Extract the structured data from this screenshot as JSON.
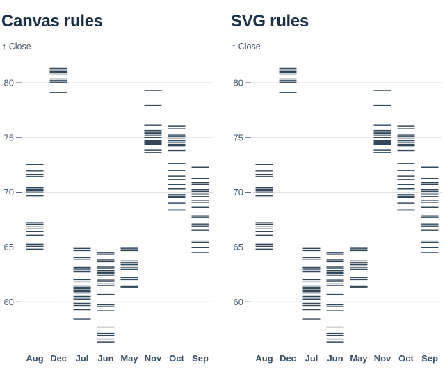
{
  "figures": [
    {
      "title": "Canvas rules",
      "y_axis_label": "↑ Close",
      "renderer": "canvas"
    },
    {
      "title": "SVG rules",
      "y_axis_label": "↑ Close",
      "renderer": "svg"
    }
  ],
  "chart_data": {
    "type": "tick",
    "title": "Canvas rules vs SVG rules",
    "xlabel": "",
    "ylabel": "Close",
    "categories": [
      "Aug",
      "Dec",
      "Jul",
      "Jun",
      "May",
      "Nov",
      "Oct",
      "Sep"
    ],
    "yticks": [
      60,
      65,
      70,
      75,
      80
    ],
    "ylim": [
      56,
      82
    ],
    "grid": true,
    "legend": "none",
    "series": [
      {
        "name": "Aug",
        "values": [
          72.53,
          72.0,
          71.87,
          71.6,
          71.45,
          70.44,
          70.28,
          70.12,
          69.96,
          69.68,
          67.26,
          67.1,
          66.85,
          66.66,
          66.41,
          66.09,
          65.26,
          65.07,
          64.82
        ]
      },
      {
        "name": "Dec",
        "values": [
          81.3,
          81.17,
          81.05,
          80.93,
          80.79,
          80.35,
          80.2,
          80.05,
          79.1
        ]
      },
      {
        "name": "Jul",
        "values": [
          64.88,
          64.69,
          64.05,
          63.9,
          63.16,
          63.0,
          62.78,
          62.02,
          61.83,
          61.45,
          61.32,
          61.19,
          61.07,
          60.94,
          60.81,
          60.5,
          60.37,
          60.24,
          59.86,
          59.67,
          59.29,
          58.43
        ]
      },
      {
        "name": "Jun",
        "values": [
          64.47,
          64.34,
          63.83,
          63.67,
          63.19,
          63.06,
          62.84,
          62.72,
          62.59,
          62.43,
          61.98,
          61.86,
          61.64,
          61.48,
          60.68,
          59.73,
          59.57,
          59.19,
          57.7,
          57.13,
          56.94,
          56.62,
          56.33
        ]
      },
      {
        "name": "May",
        "values": [
          64.97,
          64.85,
          64.69,
          63.74,
          63.58,
          63.42,
          63.29,
          63.13,
          62.97,
          62.21,
          62.02,
          61.45,
          61.37,
          61.29
        ]
      },
      {
        "name": "Nov",
        "values": [
          79.3,
          77.93,
          76.12,
          75.65,
          75.49,
          75.33,
          75.17,
          75.01,
          74.73,
          74.66,
          74.6,
          74.53,
          74.48,
          74.41,
          74.35,
          73.84,
          73.65
        ]
      },
      {
        "name": "Oct",
        "values": [
          76.06,
          75.81,
          75.24,
          75.11,
          74.95,
          74.7,
          74.54,
          74.38,
          74.25,
          73.81,
          72.63,
          72.0,
          71.49,
          71.17,
          70.72,
          70.31,
          69.8,
          69.64,
          69.52,
          69.1,
          68.97,
          68.47,
          68.31
        ]
      },
      {
        "name": "Sep",
        "values": [
          72.31,
          71.26,
          70.88,
          70.72,
          70.25,
          70.09,
          69.93,
          69.77,
          69.61,
          69.29,
          69.1,
          68.63,
          67.87,
          67.75,
          67.11,
          66.92,
          66.54,
          65.56,
          65.43,
          64.95,
          64.52
        ]
      }
    ],
    "colors": {
      "background": "#ffffff",
      "title": "#1b2f4a",
      "tick": "#34485c",
      "grid": "#dadcdf",
      "axis_label": "#44566b",
      "month_label": "#3c5066"
    }
  }
}
